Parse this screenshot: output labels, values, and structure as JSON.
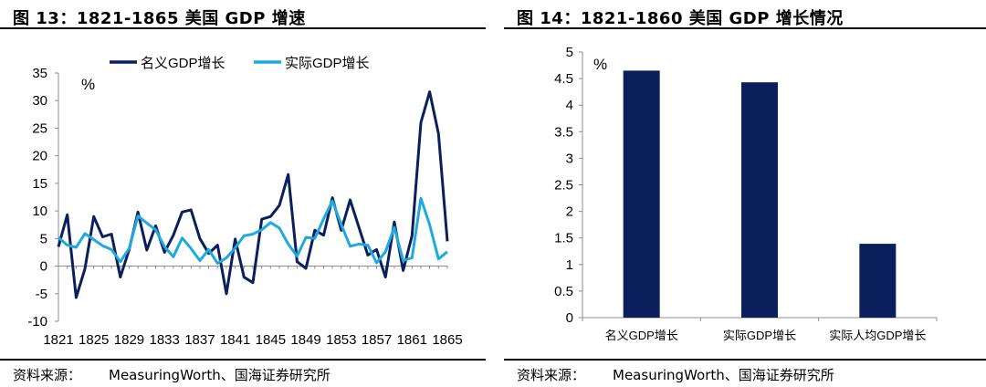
{
  "left": {
    "title": "图 13：1821-1865 美国 GDP 增速",
    "source_label": "资料来源：",
    "source_text": "MeasuringWorth、国海证券研究所"
  },
  "right": {
    "title": "图 14：1821-1860 美国 GDP 增长情况",
    "source_label": "资料来源：",
    "source_text": "MeasuringWorth、国海证券研究所"
  },
  "colors": {
    "nominal": "#0a1f5c",
    "real": "#1fa9e1",
    "bar": "#0a1f5c"
  },
  "chart_data": [
    {
      "type": "line",
      "unit_label": "%",
      "x_tick_labels": [
        "1821",
        "1825",
        "1829",
        "1833",
        "1837",
        "1841",
        "1845",
        "1849",
        "1853",
        "1857",
        "1861",
        "1865"
      ],
      "x": [
        1821,
        1822,
        1823,
        1824,
        1825,
        1826,
        1827,
        1828,
        1829,
        1830,
        1831,
        1832,
        1833,
        1834,
        1835,
        1836,
        1837,
        1838,
        1839,
        1840,
        1841,
        1842,
        1843,
        1844,
        1845,
        1846,
        1847,
        1848,
        1849,
        1850,
        1851,
        1852,
        1853,
        1854,
        1855,
        1856,
        1857,
        1858,
        1859,
        1860,
        1861,
        1862,
        1863,
        1864,
        1865
      ],
      "ylim": [
        -10,
        35
      ],
      "yticks": [
        -10,
        -5,
        0,
        5,
        10,
        15,
        20,
        25,
        30,
        35
      ],
      "legend_position": "top",
      "series": [
        {
          "name": "名义GDP增长",
          "color_key": "nominal",
          "values": [
            3.5,
            9.3,
            -5.7,
            -0.5,
            9.0,
            5.3,
            5.8,
            -2.0,
            3.0,
            9.8,
            2.9,
            7.3,
            2.5,
            5.6,
            9.8,
            10.2,
            5.0,
            2.3,
            3.8,
            -5.0,
            4.9,
            -2.0,
            -3.0,
            8.5,
            9.0,
            11.0,
            16.6,
            0.8,
            -0.4,
            6.5,
            5.6,
            12.4,
            6.5,
            12.0,
            7.0,
            2.0,
            3.0,
            -2.0,
            8.0,
            -0.8,
            5.5,
            26.0,
            31.6,
            24.0,
            4.5
          ]
        },
        {
          "name": "实际GDP增长",
          "color_key": "real",
          "values": [
            5.2,
            3.8,
            3.4,
            5.9,
            4.8,
            3.7,
            3.0,
            0.8,
            3.2,
            9.1,
            7.8,
            6.6,
            3.5,
            1.7,
            5.1,
            3.2,
            1.0,
            3.0,
            0.5,
            1.5,
            3.3,
            5.5,
            5.8,
            6.6,
            7.9,
            6.9,
            4.0,
            1.8,
            5.2,
            5.0,
            8.6,
            11.8,
            7.5,
            3.6,
            4.0,
            3.8,
            0.6,
            2.6,
            7.0,
            1.0,
            1.5,
            12.3,
            7.5,
            1.3,
            2.6
          ]
        }
      ]
    },
    {
      "type": "bar",
      "unit_label": "%",
      "categories": [
        "名义GDP增长",
        "实际GDP增长",
        "实际人均GDP增长"
      ],
      "values": [
        4.65,
        4.43,
        1.39
      ],
      "ylim": [
        0,
        5
      ],
      "yticks": [
        0,
        0.5,
        1,
        1.5,
        2,
        2.5,
        3,
        3.5,
        4,
        4.5,
        5
      ],
      "color_key": "bar"
    }
  ]
}
